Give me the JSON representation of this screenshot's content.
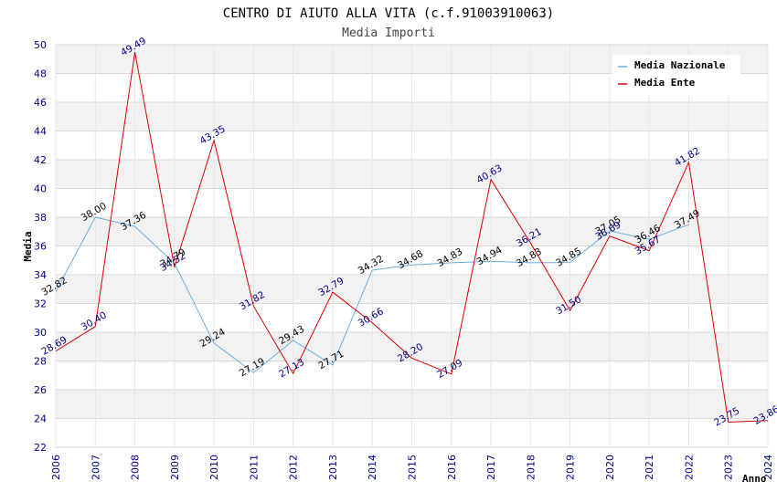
{
  "chart_data": {
    "type": "line",
    "title": "CENTRO DI AIUTO ALLA VITA (c.f.91003910063)",
    "subtitle": "Media Importi",
    "xlabel": "Anno",
    "ylabel": "Media",
    "ylim": [
      22,
      50
    ],
    "yticks": [
      22,
      24,
      26,
      28,
      30,
      32,
      34,
      36,
      38,
      40,
      42,
      44,
      46,
      48,
      50
    ],
    "ytick_labels": [
      "22",
      "24",
      "26",
      "28",
      "30",
      "32",
      "34",
      "36",
      "38",
      "40",
      "42",
      "44",
      "46",
      "48",
      "50"
    ],
    "categories": [
      "2006",
      "2007",
      "2008",
      "2009",
      "2010",
      "2011",
      "2012",
      "2013",
      "2014",
      "2015",
      "2016",
      "2017",
      "2018",
      "2019",
      "2020",
      "2021",
      "2022",
      "2023",
      "2024"
    ],
    "grid": true,
    "legend_position": "top-right",
    "series": [
      {
        "name": "Media Nazionale",
        "color": "#6aaee0",
        "values": [
          32.82,
          38.0,
          37.36,
          34.79,
          29.24,
          27.19,
          29.43,
          27.71,
          34.32,
          34.68,
          34.83,
          34.94,
          34.83,
          34.85,
          37.05,
          36.46,
          37.49,
          null,
          null
        ],
        "labels": [
          "32.82",
          "38.00",
          "37.36",
          "34.79",
          "29.24",
          "27.19",
          "29.43",
          "27.71",
          "34.32",
          "34.68",
          "34.83",
          "34.94",
          "34.83",
          "34.85",
          "37.05",
          "36.46",
          "37.49",
          "",
          ""
        ]
      },
      {
        "name": "Media Ente",
        "color": "#dd0000",
        "values": [
          28.69,
          30.4,
          49.49,
          34.52,
          43.35,
          31.82,
          27.13,
          32.79,
          30.66,
          28.2,
          27.09,
          40.63,
          36.21,
          31.5,
          36.69,
          35.67,
          41.82,
          23.75,
          23.86
        ],
        "labels": [
          "28.69",
          "30.40",
          "49.49",
          "34.52",
          "43.35",
          "31.82",
          "27.13",
          "32.79",
          "30.66",
          "28.20",
          "27.09",
          "40.63",
          "36.21",
          "31.50",
          "36.69",
          "35.67",
          "41.82",
          "23.75",
          "23.86"
        ]
      }
    ]
  }
}
